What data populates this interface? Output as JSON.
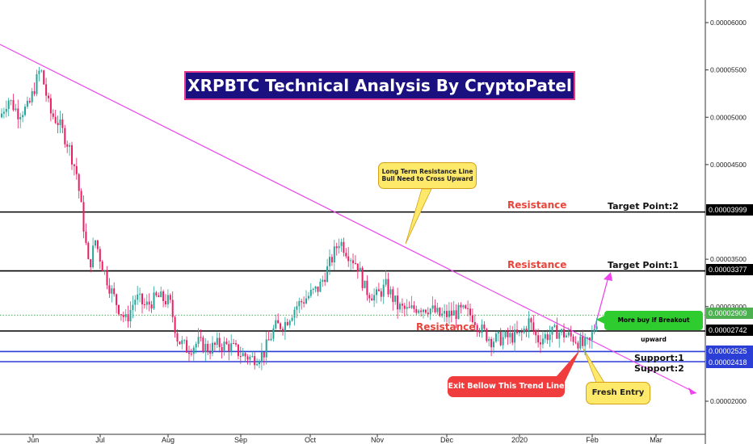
{
  "title": "XRPBTC Technical Analysis By CryptoPatel",
  "colors": {
    "up_candle": "#26a69a",
    "down_candle": "#e91e63",
    "trendline": "#ee44ee",
    "level_black": "#000000",
    "level_blue": "#2b3fd6",
    "dotted_level": "#4caf50",
    "title_bg": "#1a1080",
    "title_border": "#e83a8a"
  },
  "chart_data": {
    "type": "candlestick",
    "symbol": "XRPBTC",
    "x_axis_labels": [
      "Jun",
      "Jul",
      "Aug",
      "Sep",
      "Oct",
      "Nov",
      "Dec",
      "2020",
      "Feb",
      "Mar"
    ],
    "y_axis_labels": [
      "0.00006000",
      "0.00005500",
      "0.00005000",
      "0.00004500",
      "0.00003500",
      "0.00003000",
      "0.00002000"
    ],
    "ylim": [
      1.78e-05,
      6.38e-05
    ],
    "price_scale": "right",
    "grid": false,
    "ohlc_daily_approx": {
      "Jun-01": [
        5e-05,
        5.45e-05,
        4.9e-05,
        5.2e-05
      ],
      "Jun-10": [
        5.3e-05,
        5.52e-05,
        5e-05,
        5.1e-05
      ],
      "Jun-20": [
        5e-05,
        5.05e-05,
        4.3e-05,
        4.6e-05
      ],
      "Jul-01": [
        4e-05,
        3.95e-05,
        3.3e-05,
        3.5e-05
      ],
      "Jul-15": [
        3.3e-05,
        3.45e-05,
        2.9e-05,
        3e-05
      ],
      "Aug-01": [
        2.9e-05,
        3e-05,
        2.55e-05,
        2.65e-05
      ],
      "Aug-15": [
        2.65e-05,
        2.75e-05,
        2.5e-05,
        2.6e-05
      ],
      "Sep-01": [
        2.6e-05,
        2.65e-05,
        2.45e-05,
        2.52e-05
      ],
      "Sep-15": [
        2.52e-05,
        2.8e-05,
        2.5e-05,
        2.75e-05
      ],
      "Oct-01": [
        2.75e-05,
        3.2e-05,
        2.7e-05,
        3.1e-05
      ],
      "Oct-20": [
        3.4e-05,
        3.78e-05,
        3.3e-05,
        3.5e-05
      ],
      "Nov-01": [
        3.2e-05,
        3.3e-05,
        2.9e-05,
        3e-05
      ],
      "Nov-15": [
        3.05e-05,
        3.15e-05,
        2.9e-05,
        2.95e-05
      ],
      "Dec-01": [
        3e-05,
        3.05e-05,
        2.8e-05,
        2.9e-05
      ],
      "Dec-15": [
        2.9e-05,
        3e-05,
        2.65e-05,
        2.7e-05
      ],
      "Jan-01": [
        2.7e-05,
        2.8e-05,
        2.62e-05,
        2.68e-05
      ],
      "Jan-15": [
        2.68e-05,
        2.9e-05,
        2.6e-05,
        2.65e-05
      ],
      "Feb-01": [
        2.55e-05,
        2.9e-05,
        2.52e-05,
        2.88e-05
      ]
    },
    "horizontal_levels": [
      {
        "label": "Target Point:2",
        "zone": "Resistance",
        "value": 3.999e-05,
        "color": "#000000"
      },
      {
        "label": "Target Point:1",
        "zone": "Resistance",
        "value": 3.377e-05,
        "color": "#000000"
      },
      {
        "label": "",
        "zone": "",
        "value": 2.909e-05,
        "color": "#4caf50",
        "style": "dotted"
      },
      {
        "label": "",
        "zone": "Resistance",
        "value": 2.742e-05,
        "color": "#000000"
      },
      {
        "label": "Support:1",
        "zone": "",
        "value": 2.525e-05,
        "color": "#2b3fd6"
      },
      {
        "label": "Support:2",
        "zone": "",
        "value": 2.418e-05,
        "color": "#2b3fd6"
      }
    ],
    "trendline": {
      "label": "Long Term Resistance Line",
      "color": "#ee44ee"
    }
  },
  "price_tags": {
    "p1": "0.00003999",
    "p2": "0.00003377",
    "p3": "0.00002909",
    "p4": "0.00002742",
    "p5": "0.00002525",
    "p6": "0.00002418"
  },
  "annotations": {
    "resistance_1": "Resistance",
    "resistance_2": "Resistance",
    "resistance_3": "Resistance",
    "target_2": "Target Point:2",
    "target_1": "Target Point:1",
    "support_1": "Support:1",
    "support_2": "Support:2",
    "callout_trend_line1": "Long Term Resistance Line",
    "callout_trend_line2": "Bull Need to Cross Upward",
    "callout_exit": "Exit Bellow This Trend Line",
    "callout_fresh": "Fresh Entry",
    "callout_buy": "More buy if Breakout upward"
  }
}
